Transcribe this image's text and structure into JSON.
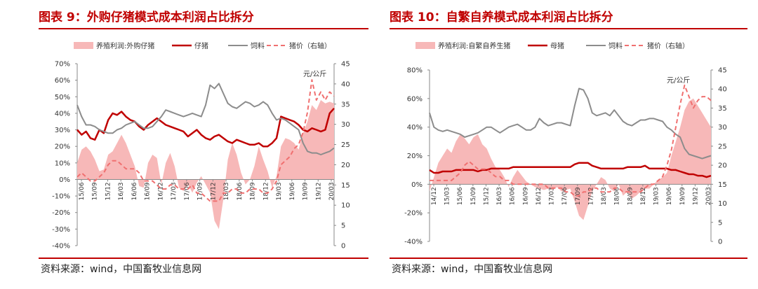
{
  "figures": [
    {
      "title": "图表 9：外购仔猪模式成本利润占比拆分",
      "source": "资料来源：wind，中国畜牧业信息网"
    },
    {
      "title": "图表 10：自繁自养模式成本利润占比拆分",
      "source": "资料来源：wind，中国畜牧业信息网"
    }
  ],
  "colors": {
    "title_red": "#c00000",
    "profit_fill": "#f7b8b8",
    "cost_line": "#c00000",
    "feed_line": "#8c8c8c",
    "price_line": "#f07070"
  },
  "chart_data": [
    {
      "type": "area",
      "unit_label": "元/公斤",
      "legend": [
        "养殖利润:外购仔猪",
        "仔猪",
        "饲料",
        "猪价（右轴）"
      ],
      "legend_placement": "top",
      "x_ticks": [
        "15/06",
        "15/09",
        "15/12",
        "16/03",
        "16/06",
        "16/09",
        "16/12",
        "17/03",
        "17/06",
        "17/09",
        "17/12",
        "18/03",
        "18/06",
        "18/09",
        "18/12",
        "19/03",
        "19/06",
        "19/09",
        "19/12",
        "20/03"
      ],
      "y_left_ticks": [
        "70%",
        "60%",
        "50%",
        "40%",
        "30%",
        "20%",
        "10%",
        "0%",
        "-10%",
        "-20%",
        "-30%",
        "-40%"
      ],
      "y_left_range": [
        -40,
        70
      ],
      "y_right_ticks": [
        "45",
        "40",
        "35",
        "30",
        "25",
        "20",
        "15",
        "10",
        "5",
        "0"
      ],
      "y_right_range": [
        0,
        45
      ],
      "x_range": [
        0,
        58
      ],
      "series": [
        {
          "name": "养殖利润:外购仔猪",
          "kind": "area",
          "axis": "left",
          "x": [
            0,
            1,
            2,
            3,
            4,
            5,
            6,
            7,
            8,
            9,
            10,
            11,
            12,
            13,
            14,
            15,
            16,
            17,
            18,
            19,
            20,
            21,
            22,
            23,
            24,
            25,
            26,
            27,
            28,
            29,
            30,
            31,
            32,
            33,
            34,
            35,
            36,
            37,
            38,
            39,
            40,
            41,
            42,
            43,
            44,
            45,
            46,
            47,
            48,
            49,
            50,
            51,
            52,
            53,
            54,
            55,
            56,
            57,
            58
          ],
          "values": [
            10,
            18,
            20,
            17,
            12,
            5,
            6,
            15,
            17,
            22,
            27,
            22,
            15,
            8,
            -4,
            -5,
            10,
            15,
            13,
            -3,
            10,
            16,
            8,
            -5,
            -7,
            -3,
            -8,
            -2,
            2,
            -3,
            -8,
            -25,
            -30,
            -12,
            12,
            22,
            15,
            4,
            -3,
            0,
            8,
            20,
            12,
            5,
            -5,
            2,
            20,
            25,
            24,
            22,
            18,
            28,
            35,
            45,
            42,
            48,
            46,
            47,
            46
          ]
        },
        {
          "name": "仔猪",
          "kind": "line",
          "axis": "left",
          "x": [
            0,
            1,
            2,
            3,
            4,
            5,
            6,
            7,
            8,
            9,
            10,
            11,
            12,
            13,
            14,
            15,
            16,
            17,
            18,
            19,
            20,
            21,
            22,
            23,
            24,
            25,
            26,
            27,
            28,
            29,
            30,
            31,
            32,
            33,
            34,
            35,
            36,
            37,
            38,
            39,
            40,
            41,
            42,
            43,
            44,
            45,
            46,
            47,
            48,
            49,
            50,
            51,
            52,
            53,
            54,
            55,
            56,
            57,
            58
          ],
          "values": [
            30,
            27,
            29,
            25,
            24,
            30,
            28,
            36,
            40,
            39,
            41,
            38,
            36,
            35,
            32,
            30,
            33,
            35,
            37,
            35,
            33,
            32,
            31,
            30,
            29,
            26,
            28,
            30,
            27,
            25,
            24,
            26,
            27,
            25,
            23,
            22,
            24,
            23,
            22,
            21,
            21,
            22,
            20,
            20,
            22,
            25,
            38,
            37,
            36,
            35,
            33,
            30,
            29,
            31,
            30,
            29,
            30,
            40,
            43
          ]
        },
        {
          "name": "饲料",
          "kind": "line",
          "axis": "left",
          "x": [
            0,
            1,
            2,
            3,
            4,
            5,
            6,
            7,
            8,
            9,
            10,
            11,
            12,
            13,
            14,
            15,
            16,
            17,
            18,
            19,
            20,
            21,
            22,
            23,
            24,
            25,
            26,
            27,
            28,
            29,
            30,
            31,
            32,
            33,
            34,
            35,
            36,
            37,
            38,
            39,
            40,
            41,
            42,
            43,
            44,
            45,
            46,
            47,
            48,
            49,
            50,
            51,
            52,
            53,
            54,
            55,
            56,
            57,
            58
          ],
          "values": [
            45,
            38,
            33,
            33,
            32,
            30,
            29,
            28,
            28,
            30,
            31,
            33,
            34,
            35,
            33,
            31,
            31,
            32,
            35,
            38,
            42,
            41,
            40,
            39,
            38,
            39,
            40,
            39,
            38,
            45,
            57,
            55,
            58,
            52,
            46,
            44,
            43,
            45,
            47,
            46,
            44,
            45,
            47,
            45,
            40,
            36,
            37,
            36,
            34,
            32,
            30,
            22,
            17,
            16,
            16,
            15,
            16,
            17,
            19
          ]
        },
        {
          "name": "猪价（右轴）",
          "kind": "dashed",
          "axis": "right",
          "x": [
            0,
            1,
            2,
            3,
            4,
            5,
            6,
            7,
            8,
            9,
            10,
            11,
            12,
            13,
            14,
            15,
            16,
            17,
            18,
            19,
            20,
            21,
            22,
            23,
            24,
            25,
            26,
            27,
            28,
            29,
            30,
            31,
            32,
            33,
            34,
            35,
            36,
            37,
            38,
            39,
            40,
            41,
            42,
            43,
            44,
            45,
            46,
            47,
            48,
            49,
            50,
            51,
            52,
            53,
            54,
            55,
            56,
            57,
            58
          ],
          "values": [
            17,
            18,
            17,
            16,
            16,
            17,
            18,
            20,
            21,
            21,
            20,
            19,
            19,
            19,
            18,
            16,
            16,
            16,
            15,
            14,
            14,
            15,
            15,
            14,
            14,
            14,
            15,
            13,
            13,
            12,
            11,
            11,
            11,
            13,
            13,
            14,
            14,
            13,
            13,
            14,
            14,
            14,
            13,
            13,
            14,
            16,
            20,
            21,
            22,
            24,
            25,
            28,
            33,
            41,
            36,
            38,
            36,
            38,
            37
          ]
        }
      ]
    },
    {
      "type": "area",
      "unit_label": "元/公斤",
      "legend": [
        "养殖利润:自繁自养生猪",
        "母猪",
        "饲料",
        "猪价（右轴）"
      ],
      "legend_placement": "top",
      "x_ticks": [
        "14/12",
        "15/03",
        "15/06",
        "15/09",
        "15/12",
        "16/03",
        "16/06",
        "16/09",
        "16/12",
        "17/03",
        "17/06",
        "17/09",
        "17/12",
        "18/03",
        "18/06",
        "18/09",
        "18/12",
        "19/03",
        "19/06",
        "19/09",
        "19/12",
        "20/03"
      ],
      "y_left_ticks": [
        "80%",
        "60%",
        "40%",
        "20%",
        "0%",
        "-20%",
        "-40%"
      ],
      "y_left_range": [
        -40,
        80
      ],
      "y_right_ticks": [
        "45",
        "40",
        "35",
        "30",
        "25",
        "20",
        "15",
        "10",
        "5",
        "0"
      ],
      "y_right_range": [
        0,
        45
      ],
      "x_range": [
        0,
        64
      ],
      "series": [
        {
          "name": "养殖利润:自繁自养生猪",
          "kind": "area",
          "axis": "left",
          "x": [
            0,
            1,
            2,
            3,
            4,
            5,
            6,
            7,
            8,
            9,
            10,
            11,
            12,
            13,
            14,
            15,
            16,
            17,
            18,
            19,
            20,
            21,
            22,
            23,
            24,
            25,
            26,
            27,
            28,
            29,
            30,
            31,
            32,
            33,
            34,
            35,
            36,
            37,
            38,
            39,
            40,
            41,
            42,
            43,
            44,
            45,
            46,
            47,
            48,
            49,
            50,
            51,
            52,
            53,
            54,
            55,
            56,
            57,
            58,
            59,
            60,
            61,
            62,
            63,
            64
          ],
          "values": [
            -5,
            5,
            15,
            20,
            25,
            22,
            30,
            35,
            32,
            28,
            33,
            35,
            28,
            25,
            18,
            12,
            10,
            5,
            -2,
            5,
            10,
            6,
            2,
            0,
            -2,
            -3,
            -4,
            -3,
            -4,
            -2,
            -5,
            -4,
            -3,
            -12,
            -22,
            -25,
            -15,
            -5,
            0,
            5,
            3,
            -3,
            -5,
            0,
            -8,
            -5,
            -10,
            -8,
            -5,
            -3,
            -3,
            0,
            3,
            5,
            8,
            20,
            30,
            40,
            52,
            58,
            60,
            55,
            50,
            45,
            40
          ]
        },
        {
          "name": "母猪",
          "kind": "line",
          "axis": "left",
          "x": [
            0,
            1,
            2,
            3,
            4,
            5,
            6,
            7,
            8,
            9,
            10,
            11,
            12,
            13,
            14,
            15,
            16,
            17,
            18,
            19,
            20,
            21,
            22,
            23,
            24,
            25,
            26,
            27,
            28,
            29,
            30,
            31,
            32,
            33,
            34,
            35,
            36,
            37,
            38,
            39,
            40,
            41,
            42,
            43,
            44,
            45,
            46,
            47,
            48,
            49,
            50,
            51,
            52,
            53,
            54,
            55,
            56,
            57,
            58,
            59,
            60,
            61,
            62,
            63,
            64
          ],
          "values": [
            10,
            8,
            8,
            9,
            9,
            9,
            10,
            10,
            10,
            10,
            10,
            9,
            10,
            10,
            11,
            11,
            11,
            11,
            11,
            12,
            12,
            12,
            12,
            12,
            12,
            12,
            12,
            12,
            12,
            12,
            12,
            12,
            12,
            14,
            15,
            15,
            15,
            13,
            12,
            11,
            11,
            11,
            11,
            11,
            11,
            12,
            12,
            12,
            12,
            13,
            11,
            11,
            11,
            11,
            11,
            10,
            10,
            9,
            8,
            7,
            7,
            6,
            6,
            5,
            6
          ]
        },
        {
          "name": "饲料",
          "kind": "line",
          "axis": "left",
          "x": [
            0,
            1,
            2,
            3,
            4,
            5,
            6,
            7,
            8,
            9,
            10,
            11,
            12,
            13,
            14,
            15,
            16,
            17,
            18,
            19,
            20,
            21,
            22,
            23,
            24,
            25,
            26,
            27,
            28,
            29,
            30,
            31,
            32,
            33,
            34,
            35,
            36,
            37,
            38,
            39,
            40,
            41,
            42,
            43,
            44,
            45,
            46,
            47,
            48,
            49,
            50,
            51,
            52,
            53,
            54,
            55,
            56,
            57,
            58,
            59,
            60,
            61,
            62,
            63,
            64
          ],
          "values": [
            50,
            40,
            38,
            37,
            38,
            37,
            36,
            35,
            33,
            34,
            35,
            36,
            38,
            40,
            40,
            38,
            36,
            38,
            40,
            41,
            42,
            40,
            38,
            38,
            40,
            46,
            43,
            41,
            42,
            43,
            43,
            42,
            41,
            55,
            67,
            66,
            60,
            50,
            48,
            49,
            50,
            48,
            52,
            48,
            44,
            42,
            41,
            43,
            45,
            45,
            46,
            46,
            45,
            44,
            40,
            38,
            35,
            33,
            25,
            21,
            20,
            19,
            18,
            19,
            20
          ]
        },
        {
          "name": "猪价（右轴）",
          "kind": "dashed",
          "axis": "right",
          "x": [
            0,
            1,
            2,
            3,
            4,
            5,
            6,
            7,
            8,
            9,
            10,
            11,
            12,
            13,
            14,
            15,
            16,
            17,
            18,
            19,
            20,
            21,
            22,
            23,
            24,
            25,
            26,
            27,
            28,
            29,
            30,
            31,
            32,
            33,
            34,
            35,
            36,
            37,
            38,
            39,
            40,
            41,
            42,
            43,
            44,
            45,
            46,
            47,
            48,
            49,
            50,
            51,
            52,
            53,
            54,
            55,
            56,
            57,
            58,
            59,
            60,
            61,
            62,
            63,
            64
          ],
          "values": [
            16,
            16,
            16,
            16,
            16,
            16,
            17,
            18,
            20,
            21,
            20,
            19,
            19,
            19,
            18,
            17,
            17,
            16,
            16,
            15,
            15,
            15,
            15,
            15,
            15,
            15,
            15,
            14,
            14,
            14,
            14,
            13,
            13,
            12,
            12,
            13,
            13,
            14,
            14,
            13,
            13,
            13,
            14,
            14,
            13,
            13,
            13,
            13,
            13,
            14,
            15,
            15,
            16,
            17,
            20,
            24,
            30,
            36,
            41,
            38,
            35,
            37,
            38,
            38,
            37
          ]
        }
      ]
    }
  ]
}
